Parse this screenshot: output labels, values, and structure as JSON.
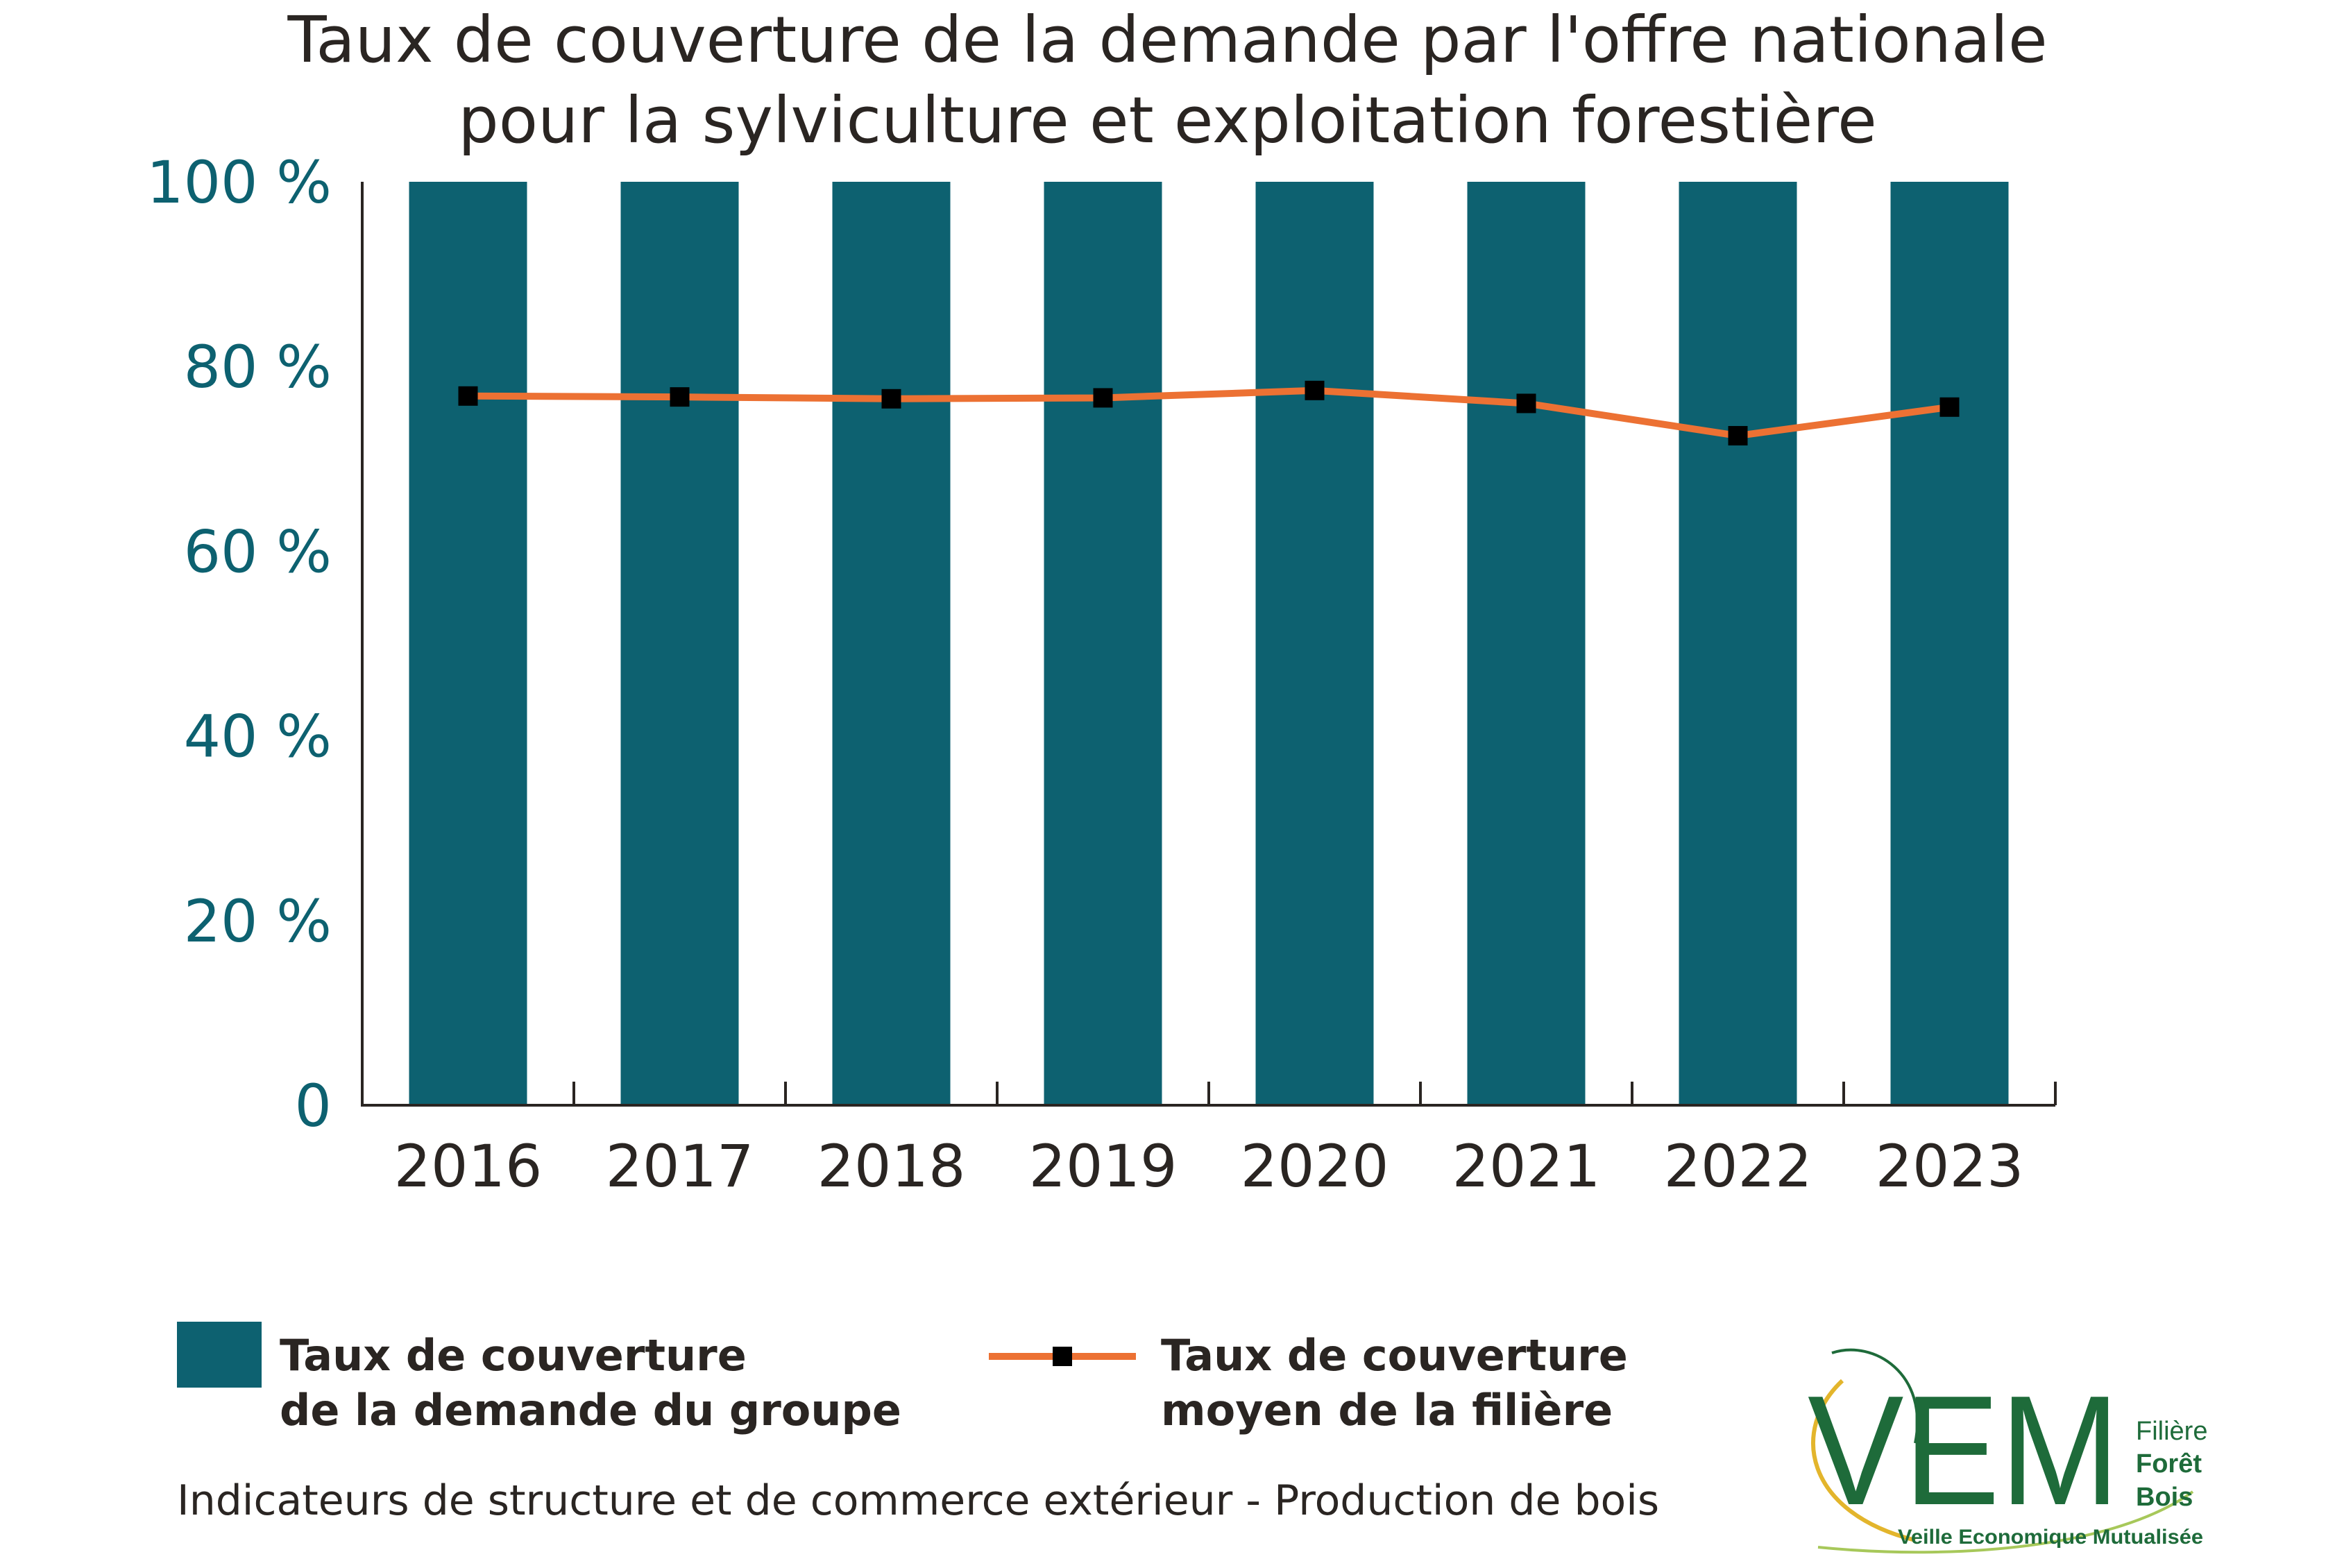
{
  "chart_data": {
    "type": "bar",
    "title": "Taux de couverture de la demande par l'offre nationale pour la sylviculture et exploitation forestière",
    "title_lines": [
      "Taux de couverture de la demande par l'offre nationale",
      "pour la sylviculture et exploitation forestière"
    ],
    "categories": [
      "2016",
      "2017",
      "2018",
      "2019",
      "2020",
      "2021",
      "2022",
      "2023"
    ],
    "series": [
      {
        "name": "Taux de couverture de la demande du groupe",
        "type": "bar",
        "color": "#0d6170",
        "values": [
          100,
          100,
          100,
          100,
          100,
          100,
          100,
          100
        ]
      },
      {
        "name": "Taux de couverture moyen de la filière",
        "type": "line",
        "color": "#ec7133",
        "marker_color": "#000000",
        "values": [
          76.8,
          76.7,
          76.5,
          76.6,
          77.4,
          76.0,
          72.5,
          75.6
        ]
      }
    ],
    "ylim": [
      0,
      100
    ],
    "yticks": [
      0,
      20,
      40,
      60,
      80,
      100
    ],
    "ytick_labels": [
      "0",
      "20 %",
      "40 %",
      "60 %",
      "80 %",
      "100 %"
    ],
    "xlabel": "",
    "ylabel": "",
    "legend": [
      {
        "lines": [
          "Taux de couverture",
          "de la demande du groupe"
        ]
      },
      {
        "lines": [
          "Taux de couverture",
          "moyen de la filière"
        ]
      }
    ]
  },
  "footer": "Indicateurs de structure et de commerce extérieur - Production de bois",
  "logo": {
    "mark": "VEM",
    "side_lines": [
      "Filière",
      "Forêt",
      "Bois"
    ],
    "tagline": "Veille Economique Mutualisée",
    "color": "#1e6b3a",
    "accent": "#e3b52c"
  }
}
